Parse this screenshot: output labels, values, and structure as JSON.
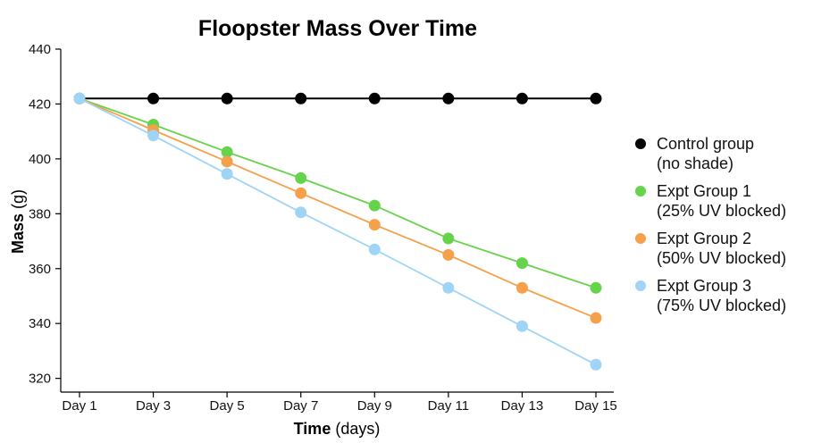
{
  "chart_data": {
    "type": "line",
    "title": "Floopster Mass Over Time",
    "xlabel_bold": "Time",
    "xlabel_unit": " (days)",
    "ylabel_bold": "Mass",
    "ylabel_unit": " (g)",
    "categories": [
      "Day 1",
      "Day 3",
      "Day 5",
      "Day 7",
      "Day 9",
      "Day 11",
      "Day 13",
      "Day 15"
    ],
    "ylim": [
      315,
      440
    ],
    "yticks": [
      320,
      340,
      360,
      380,
      400,
      420,
      440
    ],
    "grid": false,
    "legend_position": "right",
    "series": [
      {
        "name_line1": "Control group",
        "name_line2": "(no shade)",
        "color": "#000000",
        "values": [
          422,
          422,
          422,
          422,
          422,
          422,
          422,
          422
        ]
      },
      {
        "name_line1": "Expt Group 1",
        "name_line2": "(25% UV blocked)",
        "color": "#66d44a",
        "values": [
          422,
          412.5,
          402.5,
          393,
          383,
          371,
          362,
          353
        ]
      },
      {
        "name_line1": "Expt Group 2",
        "name_line2": "(50% UV blocked)",
        "color": "#f5a04a",
        "values": [
          422,
          410.5,
          399,
          387.5,
          376,
          365,
          353,
          342
        ]
      },
      {
        "name_line1": "Expt Group 3",
        "name_line2": "(75% UV blocked)",
        "color": "#9fd4f7",
        "values": [
          422,
          408.5,
          394.5,
          380.5,
          367,
          353,
          339,
          325
        ]
      }
    ]
  }
}
